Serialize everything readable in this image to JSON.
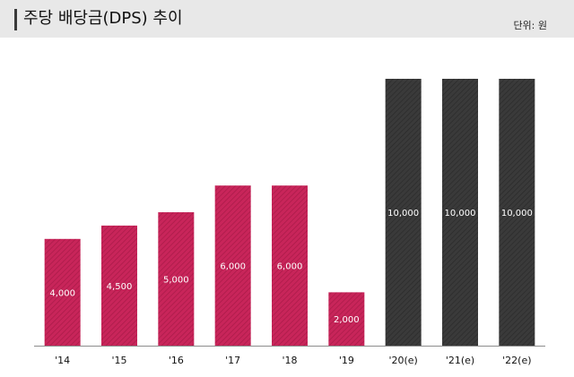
{
  "header": {
    "title": "주당 배당금(DPS) 추이",
    "unit": "단위: 원"
  },
  "chart_data": {
    "type": "bar",
    "title": "주당 배당금(DPS) 추이",
    "unit": "단위: 원",
    "xlabel": "",
    "ylabel": "",
    "ylim": [
      0,
      10000
    ],
    "grid": false,
    "categories": [
      "'14",
      "'15",
      "'16",
      "'17",
      "'18",
      "'19",
      "'20(e)",
      "'21(e)",
      "'22(e)"
    ],
    "values": [
      4000,
      4500,
      5000,
      6000,
      6000,
      2000,
      10000,
      10000,
      10000
    ],
    "value_labels": [
      "4,000",
      "4,500",
      "5,000",
      "6,000",
      "6,000",
      "2,000",
      "10,000",
      "10,000",
      "10,000"
    ],
    "estimated": [
      false,
      false,
      false,
      false,
      false,
      false,
      true,
      true,
      true
    ],
    "colors": {
      "actual": "#c8255a",
      "estimate": "#3a3a3a",
      "baseline": "#8c8c8c"
    }
  }
}
